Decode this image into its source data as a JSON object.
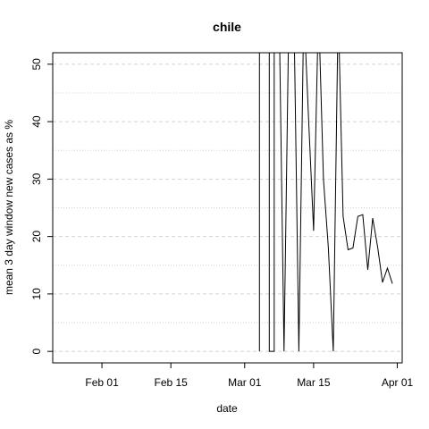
{
  "chart_data": {
    "type": "line",
    "title": "chile",
    "xlabel": "date",
    "ylabel": "mean  3  day window new cases as %",
    "x_ticks": [
      "2020-02-01",
      "2020-02-15",
      "2020-03-01",
      "2020-03-15",
      "2020-04-01"
    ],
    "x_tick_labels": [
      "Feb 01",
      "Feb 15",
      "Mar 01",
      "Mar 15",
      "Apr 01"
    ],
    "y_ticks": [
      0,
      10,
      20,
      30,
      40,
      50
    ],
    "y_tick_labels": [
      "0",
      "10",
      "20",
      "30",
      "40",
      "50"
    ],
    "xlim": [
      "2020-01-22",
      "2020-04-02"
    ],
    "ylim": [
      -2,
      52
    ],
    "grid": {
      "major": true,
      "minor": true,
      "style": "dashed",
      "color": "#d3d3d3"
    },
    "series": [
      {
        "color": "#000000",
        "points": [
          {
            "x": "2020-03-04",
            "y": 0
          },
          {
            "x": "2020-03-04",
            "y": 60
          },
          {
            "x": "2020-03-06",
            "y": 60
          },
          {
            "x": "2020-03-06",
            "y": 0
          },
          {
            "x": "2020-03-07",
            "y": 0
          },
          {
            "x": "2020-03-07",
            "y": 60
          },
          {
            "x": "2020-03-08",
            "y": 60
          },
          {
            "x": "2020-03-09",
            "y": 0
          },
          {
            "x": "2020-03-10",
            "y": 60
          },
          {
            "x": "2020-03-11",
            "y": 60
          },
          {
            "x": "2020-03-12",
            "y": 0
          },
          {
            "x": "2020-03-13",
            "y": 60
          },
          {
            "x": "2020-03-14",
            "y": 40
          },
          {
            "x": "2020-03-15",
            "y": 21
          },
          {
            "x": "2020-03-16",
            "y": 60
          },
          {
            "x": "2020-03-17",
            "y": 30
          },
          {
            "x": "2020-03-18",
            "y": 18
          },
          {
            "x": "2020-03-19",
            "y": 0
          },
          {
            "x": "2020-03-20",
            "y": 60
          },
          {
            "x": "2020-03-21",
            "y": 23.5
          },
          {
            "x": "2020-03-22",
            "y": 17.7
          },
          {
            "x": "2020-03-23",
            "y": 18
          },
          {
            "x": "2020-03-24",
            "y": 23.5
          },
          {
            "x": "2020-03-25",
            "y": 23.8
          },
          {
            "x": "2020-03-26",
            "y": 14.2
          },
          {
            "x": "2020-03-27",
            "y": 23.2
          },
          {
            "x": "2020-03-28",
            "y": 18.2
          },
          {
            "x": "2020-03-29",
            "y": 12
          },
          {
            "x": "2020-03-30",
            "y": 14.5
          },
          {
            "x": "2020-03-31",
            "y": 11.8
          }
        ]
      }
    ]
  }
}
